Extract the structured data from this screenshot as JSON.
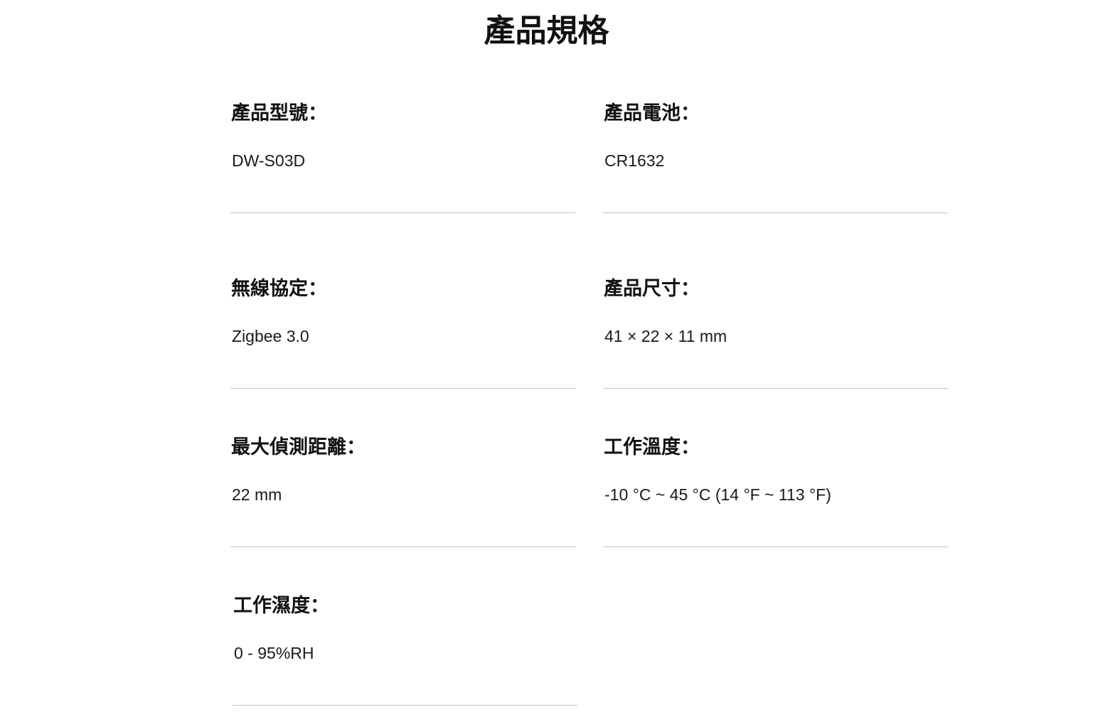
{
  "title": "產品規格",
  "specs": [
    {
      "label": "產品型號：",
      "value": "DW-S03D"
    },
    {
      "label": "產品電池：",
      "value": "CR1632"
    },
    {
      "label": "無線協定：",
      "value": "Zigbee 3.0"
    },
    {
      "label": "產品尺寸：",
      "value": "41 × 22 × 11 mm"
    },
    {
      "label": "最大偵測距離：",
      "value": "22 mm"
    },
    {
      "label": "工作溫度：",
      "value": "-10 °C ~ 45 °C (14 °F ~ 113 °F)"
    },
    {
      "label": "工作濕度：",
      "value": "0 - 95%RH"
    }
  ]
}
